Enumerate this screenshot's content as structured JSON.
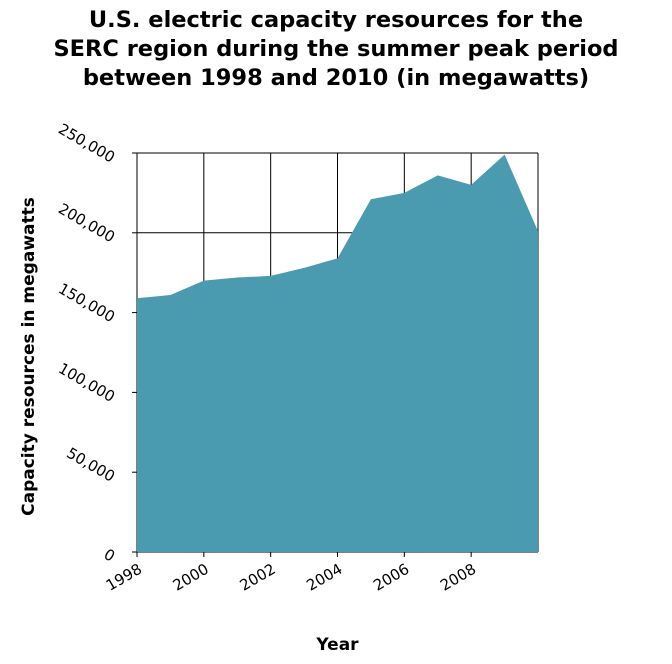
{
  "chart_data": {
    "type": "area",
    "title_lines": [
      "U.S. electric capacity resources for the",
      "SERC region during the summer peak period",
      "between 1998 and 2010 (in megawatts)"
    ],
    "xlabel": "Year",
    "ylabel": "Capacity resources in megawatts",
    "x": [
      1998,
      1999,
      2000,
      2001,
      2002,
      2003,
      2004,
      2005,
      2006,
      2007,
      2008,
      2009,
      2010
    ],
    "values": [
      159000,
      161000,
      170000,
      172000,
      173000,
      178000,
      184000,
      221000,
      225000,
      236000,
      230000,
      249000,
      201000
    ],
    "xlim": [
      1998,
      2010
    ],
    "ylim": [
      0,
      250000
    ],
    "x_ticks": [
      1998,
      2000,
      2002,
      2004,
      2006,
      2008
    ],
    "x_tick_labels": [
      "1998",
      "2000",
      "2002",
      "2004",
      "2006",
      "2008"
    ],
    "y_ticks": [
      0,
      50000,
      100000,
      150000,
      200000,
      250000
    ],
    "y_tick_labels": [
      "0",
      "50,000",
      "100,000",
      "150,000",
      "200,000",
      "250,000"
    ],
    "grid": true,
    "fill_color": "#4a9ab0",
    "grid_color": "#000000"
  }
}
